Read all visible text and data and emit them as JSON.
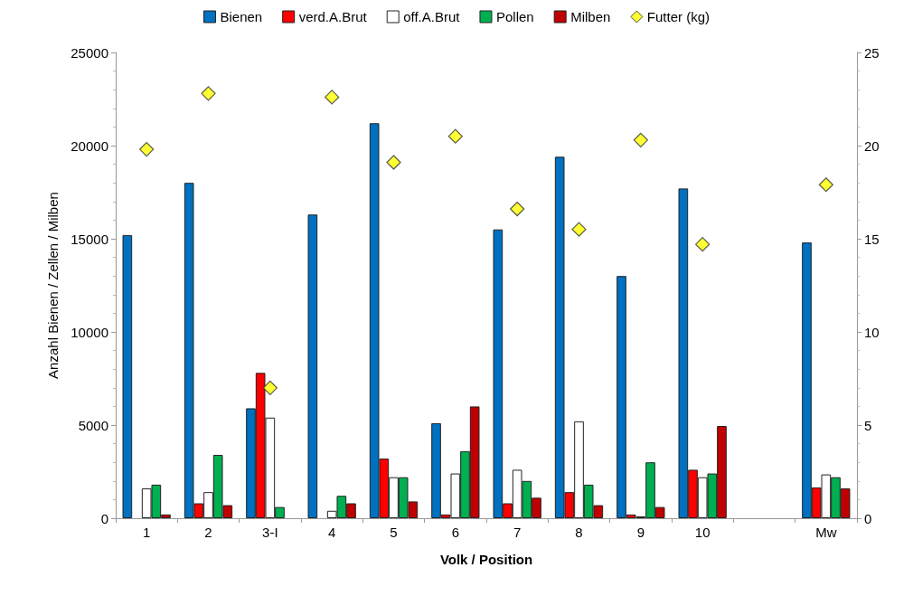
{
  "chart_data": {
    "type": "bar",
    "xlabel": "Volk / Position",
    "ylabel": "Anzahl Bienen / Zellen / Milben",
    "categories": [
      "1",
      "2",
      "3-I",
      "4",
      "5",
      "6",
      "7",
      "8",
      "9",
      "10",
      null,
      "Mw"
    ],
    "series": [
      {
        "name": "Bienen",
        "color": "#0070c0",
        "values": [
          15200,
          18000,
          5900,
          16300,
          21200,
          5100,
          15500,
          19400,
          13000,
          17700,
          null,
          14800
        ]
      },
      {
        "name": "verd.A.Brut",
        "color": "#ff0000",
        "values": [
          0,
          800,
          7800,
          0,
          3200,
          200,
          800,
          1400,
          200,
          2600,
          null,
          1650
        ]
      },
      {
        "name": "off.A.Brut",
        "color": "#ffffff",
        "values": [
          1600,
          1400,
          5400,
          400,
          2200,
          2400,
          2600,
          5200,
          100,
          2200,
          null,
          2350
        ]
      },
      {
        "name": "Pollen",
        "color": "#00b050",
        "values": [
          1800,
          3400,
          600,
          1200,
          2200,
          3600,
          2000,
          1800,
          3000,
          2400,
          null,
          2200
        ]
      },
      {
        "name": "Milben",
        "color": "#c00000",
        "values": [
          200,
          700,
          null,
          800,
          900,
          6000,
          1100,
          700,
          600,
          4950,
          null,
          1600
        ]
      },
      {
        "name": "Futter (kg)",
        "type": "scatter",
        "axis": "y2",
        "color": "#ffff00",
        "values": [
          19.8,
          22.8,
          7.0,
          22.6,
          19.1,
          20.5,
          16.6,
          15.5,
          20.3,
          14.7,
          null,
          17.9
        ]
      }
    ],
    "ylim": [
      0,
      25000
    ],
    "yticks": [
      0,
      5000,
      10000,
      15000,
      20000,
      25000
    ],
    "y2lim": [
      0,
      25
    ],
    "y2ticks": [
      0,
      5,
      10,
      15,
      20,
      25
    ],
    "grid": false,
    "legend": "top",
    "marker": "diamond"
  }
}
